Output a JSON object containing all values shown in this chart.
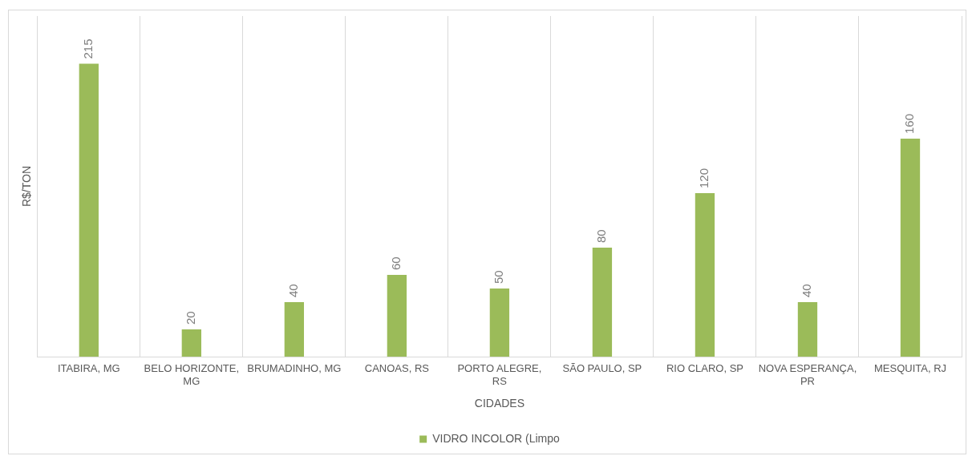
{
  "chart_data": {
    "type": "bar",
    "xlabel": "CIDADES",
    "ylabel": "R$/TON",
    "categories": [
      "ITABIRA, MG",
      "BELO HORIZONTE, MG",
      "BRUMADINHO, MG",
      "CANOAS, RS",
      "PORTO ALEGRE, RS",
      "SÃO PAULO, SP",
      "RIO CLARO, SP",
      "NOVA ESPERANÇA, PR",
      "MESQUITA, RJ"
    ],
    "series": [
      {
        "name": "VIDRO INCOLOR (Limpo",
        "color": "#9bbb59",
        "values": [
          215,
          20,
          40,
          60,
          50,
          80,
          120,
          40,
          160
        ]
      }
    ],
    "ylim": [
      0,
      250
    ],
    "tick_labels": "x",
    "grid": "x",
    "legend": "bottom",
    "data_labels": true
  }
}
